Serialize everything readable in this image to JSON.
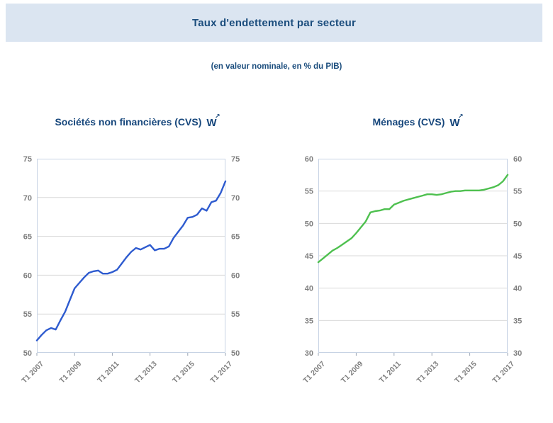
{
  "header": {
    "title": "Taux d'endettement par secteur"
  },
  "subtitle": "(en valeur nominale, en % du PIB)",
  "colors": {
    "header_bg": "#dbe5f1",
    "heading_text": "#1b4d7d",
    "chart_title_text": "#17477c",
    "axis_label": "#7f7f7f",
    "grid": "#d9d9d9",
    "plot_border": "#c7d3e4",
    "tick": "#9aa5b5",
    "blue_line": "#2e5bcf",
    "green_line": "#4ec04f"
  },
  "icons": {
    "webstat": {
      "glyph": "W",
      "arrow": "↗",
      "meaning": "webstat-series-link"
    }
  },
  "chart_data": [
    {
      "type": "line",
      "title": "Sociétés non financières (CVS)",
      "line_color": "#2e5bcf",
      "ylim": [
        50,
        75
      ],
      "ytick_step": 5,
      "grid": true,
      "y_axis_sides": "both",
      "x_range": [
        "T1 2007",
        "T1 2017"
      ],
      "frequency": "quarterly",
      "x_tick_labels": [
        "T1 2007",
        "T1 2009",
        "T1 2011",
        "T1 2013",
        "T1 2015",
        "T1 2017"
      ],
      "x_tick_indices": [
        0,
        8,
        16,
        24,
        32,
        40
      ],
      "series": [
        {
          "name": "Sociétés non financières (CVS)",
          "values": [
            51.6,
            52.3,
            52.9,
            53.2,
            53.0,
            54.2,
            55.3,
            56.8,
            58.3,
            59.0,
            59.7,
            60.3,
            60.5,
            60.6,
            60.2,
            60.2,
            60.4,
            60.7,
            61.5,
            62.3,
            63.0,
            63.5,
            63.3,
            63.6,
            63.9,
            63.2,
            63.4,
            63.4,
            63.7,
            64.8,
            65.6,
            66.4,
            67.4,
            67.5,
            67.8,
            68.6,
            68.3,
            69.4,
            69.6,
            70.6,
            72.1
          ]
        }
      ]
    },
    {
      "type": "line",
      "title": "Ménages (CVS)",
      "line_color": "#4ec04f",
      "ylim": [
        30,
        60
      ],
      "ytick_step": 5,
      "grid": true,
      "y_axis_sides": "both",
      "x_range": [
        "T1 2007",
        "T1 2017"
      ],
      "frequency": "quarterly",
      "x_tick_labels": [
        "T1 2007",
        "T1 2009",
        "T1 2011",
        "T1 2013",
        "T1 2015",
        "T1 2017"
      ],
      "x_tick_indices": [
        0,
        8,
        16,
        24,
        32,
        40
      ],
      "series": [
        {
          "name": "Ménages (CVS)",
          "values": [
            44.0,
            44.6,
            45.2,
            45.8,
            46.2,
            46.7,
            47.2,
            47.7,
            48.5,
            49.4,
            50.3,
            51.7,
            51.9,
            52.0,
            52.2,
            52.2,
            52.9,
            53.2,
            53.5,
            53.7,
            53.9,
            54.1,
            54.3,
            54.5,
            54.5,
            54.4,
            54.5,
            54.7,
            54.9,
            55.0,
            55.0,
            55.1,
            55.1,
            55.1,
            55.1,
            55.2,
            55.4,
            55.6,
            55.9,
            56.5,
            57.5
          ]
        }
      ]
    }
  ]
}
